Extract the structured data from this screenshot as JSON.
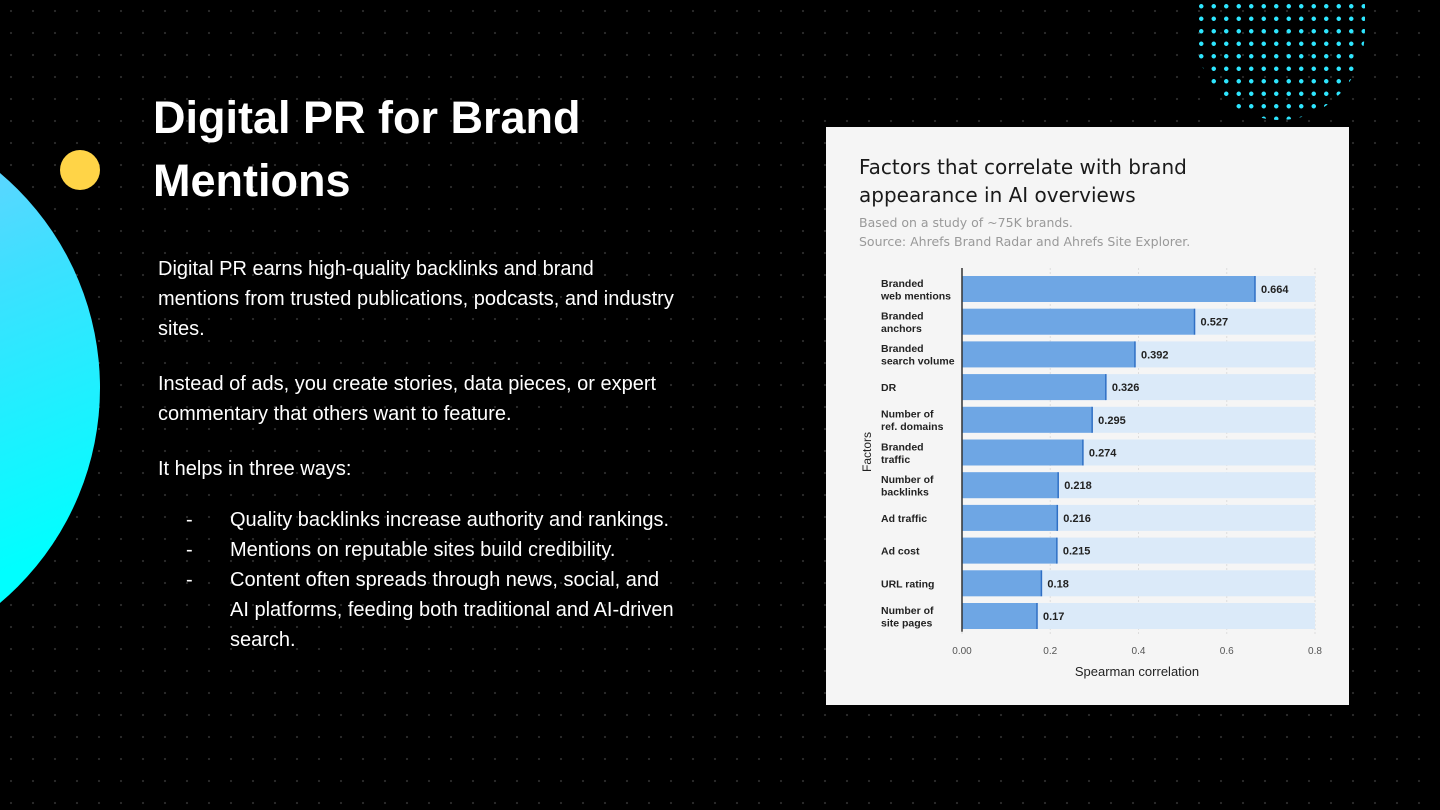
{
  "slide": {
    "title": "Digital PR for Brand Mentions",
    "paragraphs": [
      "Digital PR earns high-quality backlinks and brand mentions from trusted publications, podcasts, and industry sites.",
      "Instead of ads, you create stories, data pieces, or expert commentary that others want to feature.",
      "It helps in three ways:"
    ],
    "bullets": [
      "Quality backlinks increase authority and rankings.",
      "Mentions on reputable sites build credibility.",
      "Content often spreads through news, social, and AI platforms, feeding both traditional and AI-driven search."
    ],
    "bullet_marker": "-"
  },
  "chart_data": {
    "type": "bar",
    "orientation": "horizontal",
    "title": "Factors that correlate with brand appearance in AI overviews",
    "subtitle": [
      "Based on a study of ~75K brands.",
      "Source: Ahrefs Brand Radar and Ahrefs Site Explorer."
    ],
    "xlabel": "Spearman correlation",
    "ylabel": "Factors",
    "xlim": [
      0,
      0.8
    ],
    "xticks": [
      "0.00",
      "0.2",
      "0.4",
      "0.6",
      "0.8"
    ],
    "categories": [
      [
        "Branded",
        "web mentions"
      ],
      [
        "Branded",
        "anchors"
      ],
      [
        "Branded",
        "search volume"
      ],
      [
        "DR"
      ],
      [
        "Number of",
        "ref. domains"
      ],
      [
        "Branded",
        "traffic"
      ],
      [
        "Number of",
        "backlinks"
      ],
      [
        "Ad traffic"
      ],
      [
        "Ad cost"
      ],
      [
        "URL rating"
      ],
      [
        "Number of",
        "site pages"
      ]
    ],
    "values": [
      0.664,
      0.527,
      0.392,
      0.326,
      0.295,
      0.274,
      0.218,
      0.216,
      0.215,
      0.18,
      0.17
    ],
    "labels": [
      "0.664",
      "0.527",
      "0.392",
      "0.326",
      "0.295",
      "0.274",
      "0.218",
      "0.216",
      "0.215",
      "0.18",
      "0.17"
    ],
    "colors": {
      "bar": "#6ea6e4",
      "track": "#dbeaf9",
      "edge": "#2f6fc4"
    }
  }
}
